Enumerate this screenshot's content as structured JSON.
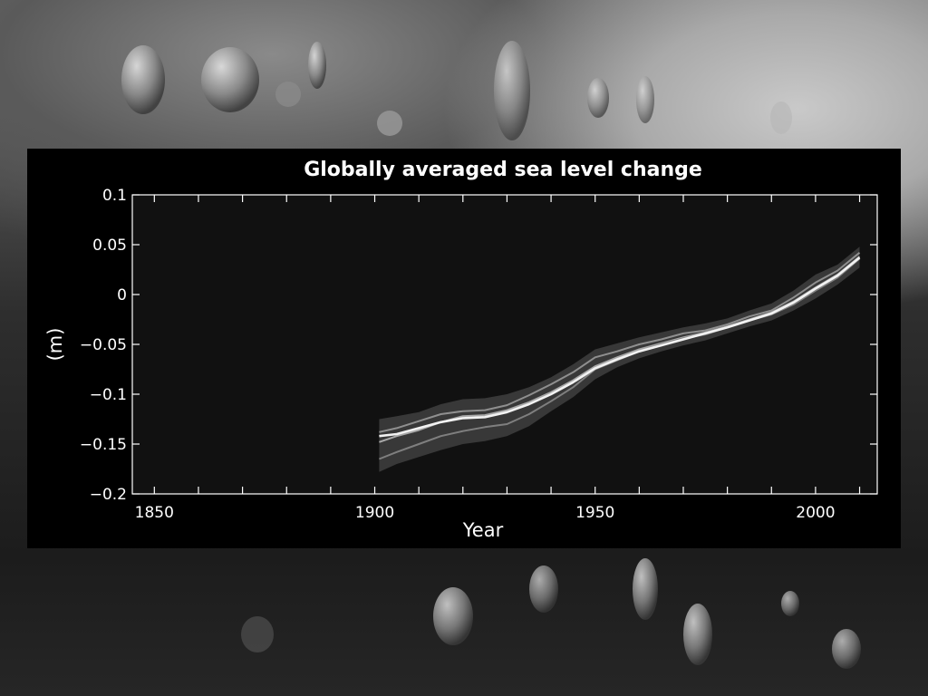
{
  "chart_data": {
    "type": "line",
    "title": "Globally averaged sea level change",
    "xlabel": "Year",
    "ylabel": "(m)",
    "xlim": [
      1845,
      2014
    ],
    "ylim": [
      -0.2,
      0.1
    ],
    "xticks": [
      "1850",
      "1900",
      "1950",
      "2000"
    ],
    "yticks": [
      "0.1",
      "0.05",
      "0",
      "−0.05",
      "−0.1",
      "−0.15",
      "−0.2"
    ],
    "grid": false,
    "x": [
      1901,
      1905,
      1910,
      1915,
      1920,
      1925,
      1930,
      1935,
      1940,
      1945,
      1950,
      1955,
      1960,
      1965,
      1970,
      1975,
      1980,
      1985,
      1990,
      1995,
      2000,
      2005,
      2010
    ],
    "series": [
      {
        "values": [
          -0.148,
          -0.142,
          -0.136,
          -0.128,
          -0.122,
          -0.121,
          -0.116,
          -0.108,
          -0.098,
          -0.086,
          -0.072,
          -0.063,
          -0.055,
          -0.049,
          -0.043,
          -0.038,
          -0.032,
          -0.025,
          -0.018,
          -0.007,
          0.007,
          0.02,
          0.038
        ],
        "color": "#a8a8a8"
      },
      {
        "values": [
          -0.165,
          -0.158,
          -0.15,
          -0.142,
          -0.137,
          -0.133,
          -0.13,
          -0.12,
          -0.107,
          -0.093,
          -0.075,
          -0.066,
          -0.057,
          -0.05,
          -0.044,
          -0.04,
          -0.033,
          -0.026,
          -0.02,
          -0.01,
          0.004,
          0.017,
          0.036
        ],
        "color": "#7f7f7f"
      },
      {
        "values": [
          -0.138,
          -0.134,
          -0.127,
          -0.12,
          -0.117,
          -0.116,
          -0.111,
          -0.101,
          -0.09,
          -0.078,
          -0.063,
          -0.057,
          -0.05,
          -0.045,
          -0.039,
          -0.036,
          -0.03,
          -0.022,
          -0.016,
          -0.003,
          0.012,
          0.024,
          0.042
        ],
        "color": "#8f8f8f"
      },
      {
        "values": [
          -0.142,
          -0.14,
          -0.134,
          -0.128,
          -0.124,
          -0.123,
          -0.118,
          -0.11,
          -0.1,
          -0.088,
          -0.074,
          -0.065,
          -0.057,
          -0.051,
          -0.045,
          -0.039,
          -0.033,
          -0.026,
          -0.019,
          -0.008,
          0.006,
          0.019,
          0.037
        ],
        "color": "#f2f2f2"
      }
    ],
    "uncertainty_band": {
      "upper": [
        -0.125,
        -0.122,
        -0.118,
        -0.11,
        -0.105,
        -0.104,
        -0.1,
        -0.093,
        -0.083,
        -0.07,
        -0.055,
        -0.049,
        -0.043,
        -0.038,
        -0.033,
        -0.029,
        -0.024,
        -0.016,
        -0.009,
        0.004,
        0.02,
        0.03,
        0.048
      ],
      "lower": [
        -0.178,
        -0.17,
        -0.163,
        -0.156,
        -0.15,
        -0.147,
        -0.142,
        -0.132,
        -0.117,
        -0.103,
        -0.085,
        -0.073,
        -0.064,
        -0.057,
        -0.051,
        -0.046,
        -0.039,
        -0.032,
        -0.026,
        -0.016,
        -0.004,
        0.01,
        0.027
      ],
      "color": "#5a5a5a"
    }
  }
}
